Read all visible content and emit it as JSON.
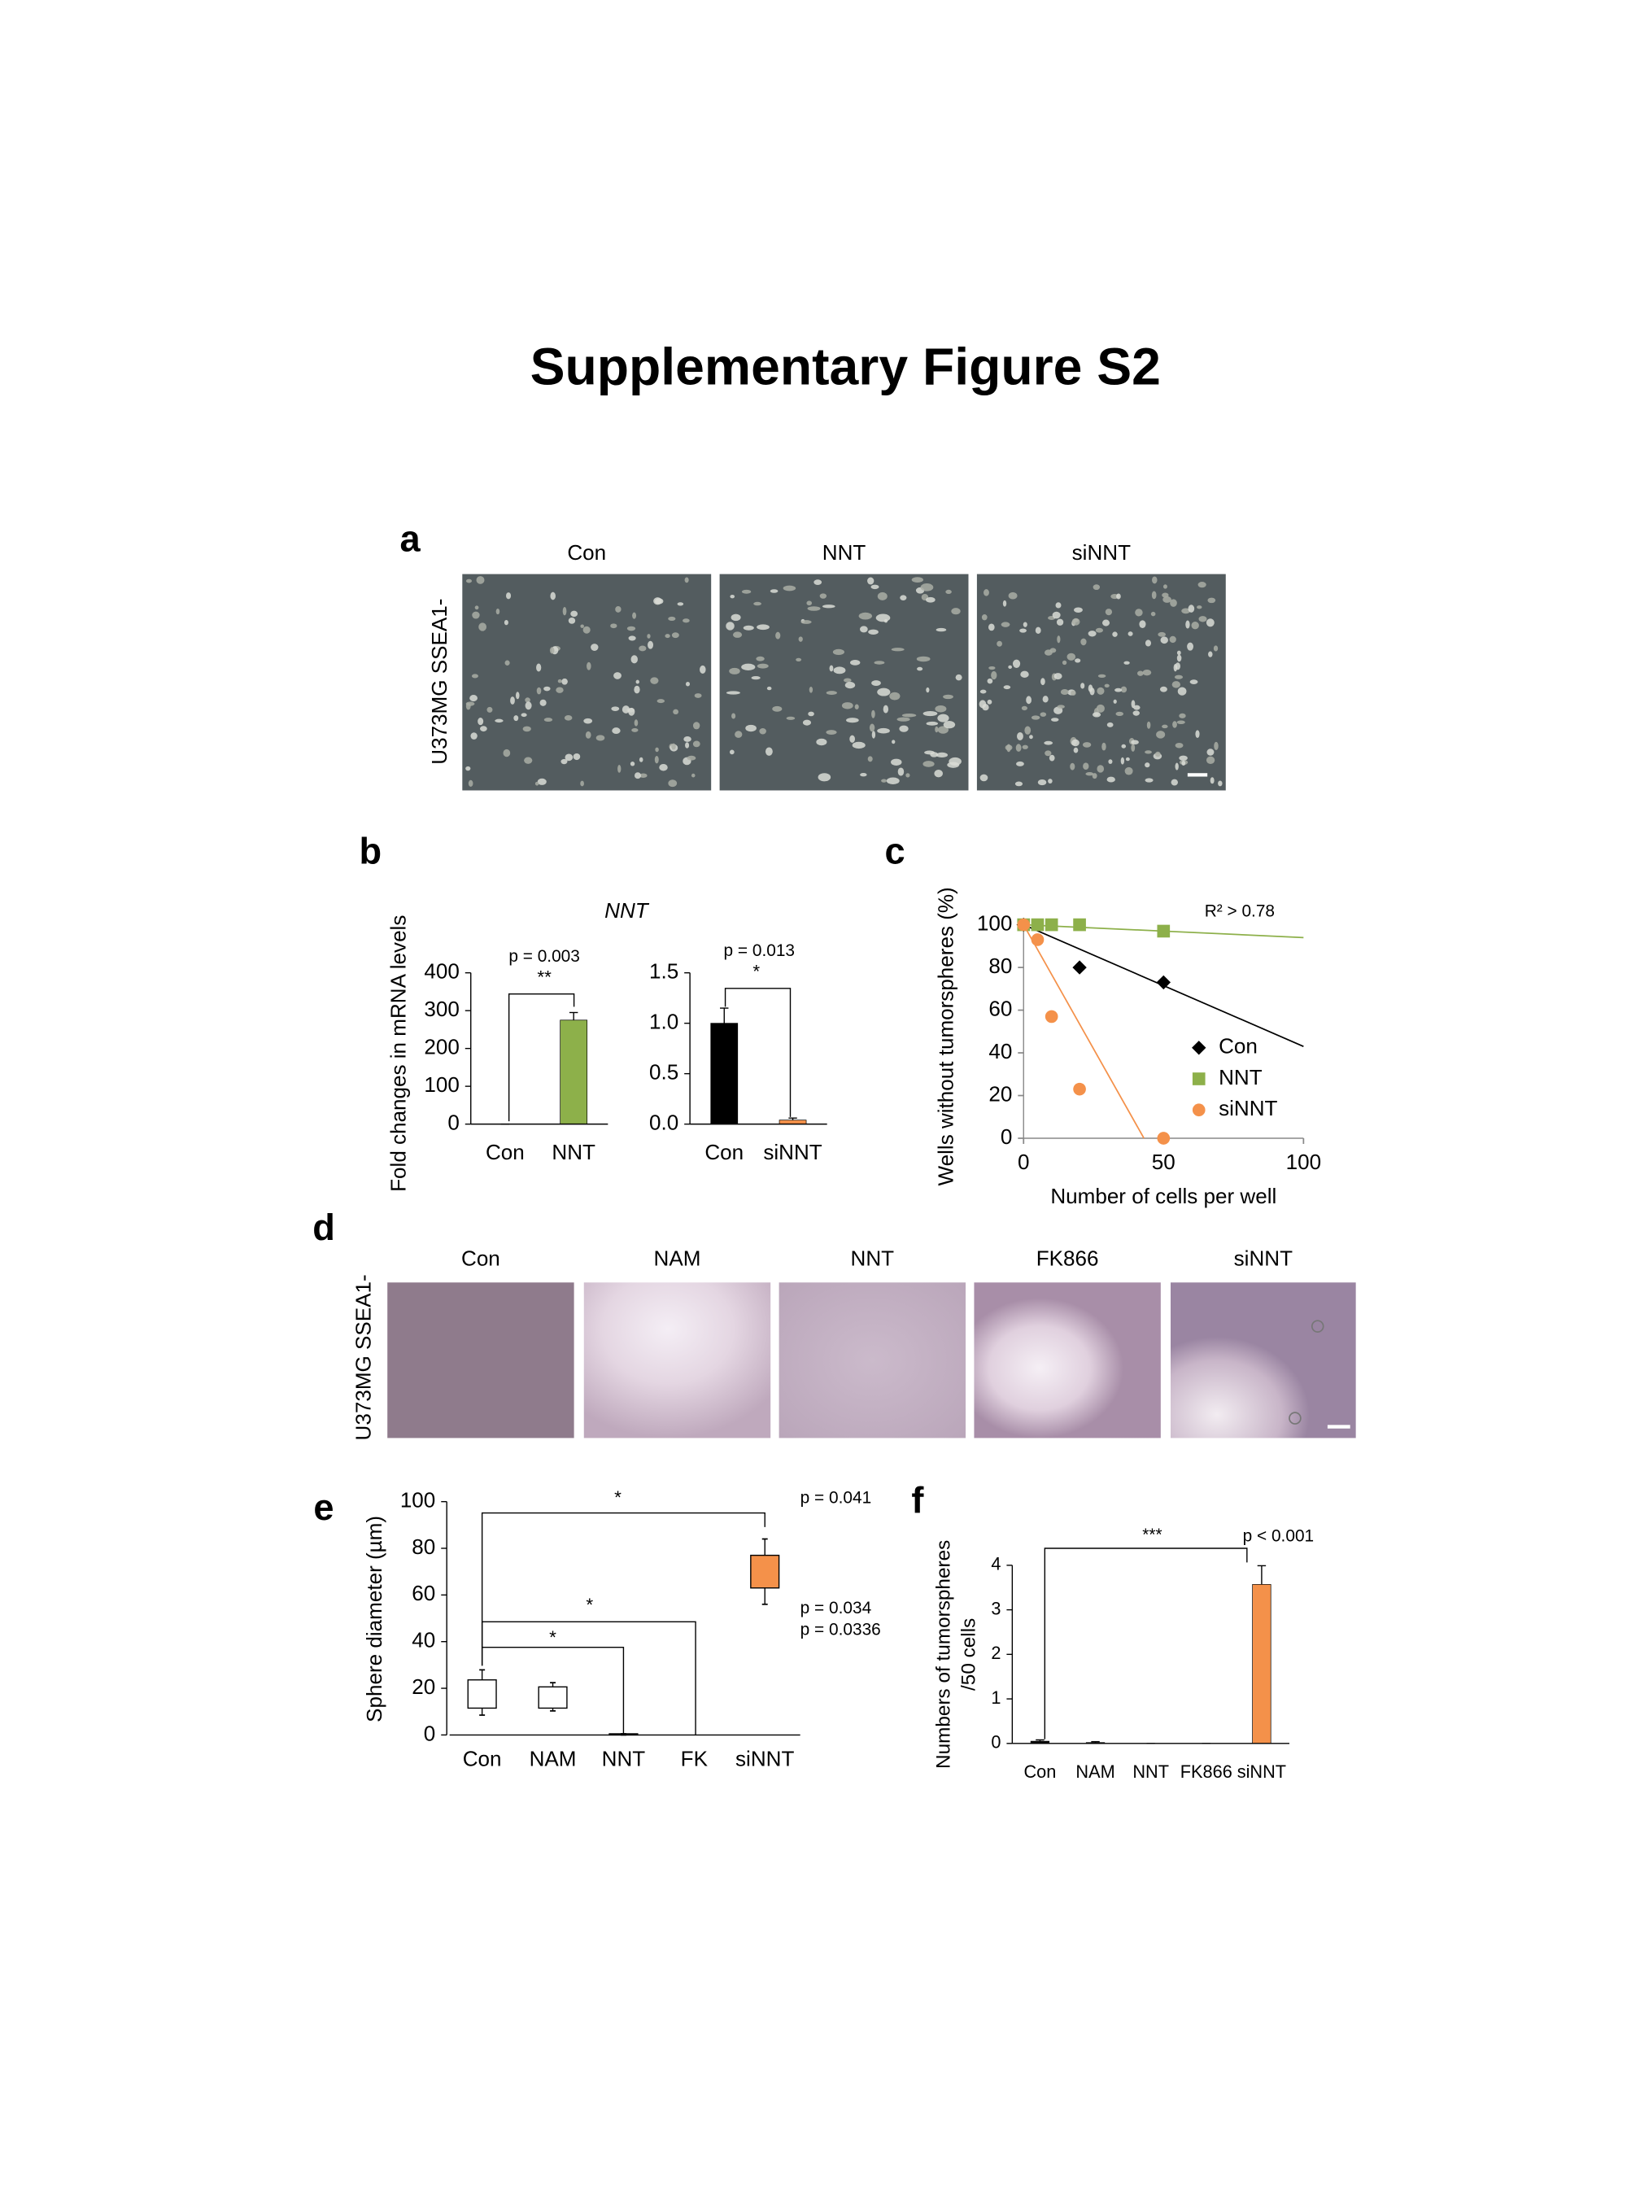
{
  "title": "Supplementary Figure S2",
  "panel_labels": [
    "a",
    "b",
    "c",
    "d",
    "e",
    "f"
  ],
  "panel_a": {
    "row_label": "U373MG SSEA1-",
    "columns": [
      "Con",
      "NNT",
      "siNNT"
    ]
  },
  "panel_d": {
    "row_label": "U373MG SSEA1-",
    "columns": [
      "Con",
      "NAM",
      "NNT",
      "FK866",
      "siNNT"
    ]
  },
  "chart_data": [
    {
      "type": "bar",
      "title": "NNT",
      "ylabel": "Fold changes in mRNA levels",
      "categories": [
        "Con",
        "NNT"
      ],
      "values": [
        0,
        275
      ],
      "errors": [
        0,
        20
      ],
      "colors": [
        "#000000",
        "#8db04a"
      ],
      "ylim": [
        0,
        400
      ],
      "yticks": [
        0,
        100,
        200,
        300,
        400
      ],
      "annotations": [
        "p = 0.003",
        "**"
      ]
    },
    {
      "type": "bar",
      "categories": [
        "Con",
        "siNNT"
      ],
      "values": [
        1.0,
        0.04
      ],
      "errors": [
        0.15,
        0.02
      ],
      "colors": [
        "#000000",
        "#f4914a"
      ],
      "ylim": [
        0,
        1.5
      ],
      "yticks": [
        {
          "value": 0,
          "label": "0.0"
        },
        0.5,
        {
          "value": 1,
          "label": "1.0"
        },
        1.5
      ],
      "annotations": [
        "p = 0.013",
        "*"
      ]
    },
    {
      "type": "scatter",
      "xlabel": "Number of cells per well",
      "ylabel": "Wells without tumorspheres (%)",
      "annotation": "R² > 0.78",
      "xlim": [
        0,
        100
      ],
      "ylim": [
        0,
        100
      ],
      "xticks": [
        0,
        50,
        100
      ],
      "yticks": [
        0,
        20,
        40,
        60,
        80,
        100
      ],
      "legend": "right",
      "series": [
        {
          "name": "Con",
          "color": "#000000",
          "marker": "diamond",
          "x": [
            0,
            20,
            50
          ],
          "y": [
            100,
            80,
            73
          ],
          "trend": {
            "x": [
              0,
              100
            ],
            "y": [
              100,
              43
            ]
          }
        },
        {
          "name": "NNT",
          "color": "#8db04a",
          "marker": "square",
          "x": [
            0,
            5,
            10,
            20,
            50
          ],
          "y": [
            100,
            100,
            100,
            100,
            97
          ],
          "trend": {
            "x": [
              0,
              100
            ],
            "y": [
              100,
              94
            ]
          }
        },
        {
          "name": "siNNT",
          "color": "#f4914a",
          "marker": "circle",
          "x": [
            0,
            5,
            10,
            20,
            50
          ],
          "y": [
            100,
            93,
            57,
            23,
            0
          ],
          "trend": {
            "x": [
              0,
              43
            ],
            "y": [
              100,
              0
            ]
          }
        }
      ]
    },
    {
      "type": "box",
      "ylabel": "Sphere diameter (µm)",
      "categories": [
        "Con",
        "NAM",
        "NNT",
        "FK",
        "siNNT"
      ],
      "boxes": [
        {
          "whislo": 8.5,
          "q1": 11.5,
          "q3": 23.6,
          "whishi": 27.9
        },
        {
          "whislo": 10.3,
          "q1": 11.5,
          "q3": 20.6,
          "whishi": 22.4
        },
        {
          "whislo": 0,
          "q1": 0,
          "q3": 0.5,
          "whishi": 0.5
        },
        null,
        {
          "whislo": 56,
          "q1": 63,
          "q3": 77,
          "whishi": 84
        }
      ],
      "colors": [
        "#ffffff",
        "#ffffff",
        "#ffffff",
        null,
        "#f4914a"
      ],
      "ylim": [
        0,
        100
      ],
      "yticks": [
        0,
        20,
        40,
        60,
        80,
        100
      ],
      "annotations": [
        "*",
        "*",
        "*",
        "p = 0.041",
        "p = 0.034",
        "p = 0.0336"
      ]
    },
    {
      "type": "bar",
      "ylabel": [
        "Numbers of tumorspheres",
        "/50 cells"
      ],
      "categories": [
        "Con",
        "NAM",
        "NNT",
        "FK866",
        "siNNT"
      ],
      "values": [
        0.05,
        0.02,
        0,
        0,
        3.57
      ],
      "errors": [
        0.03,
        0.02,
        0,
        0,
        0.42
      ],
      "colors": [
        "#000000",
        "#000000",
        "#000000",
        "#000000",
        "#f4914a"
      ],
      "ylim": [
        0,
        4
      ],
      "yticks": [
        0,
        1,
        2,
        3,
        4
      ],
      "annotations": [
        "***",
        "p < 0.001"
      ]
    }
  ]
}
